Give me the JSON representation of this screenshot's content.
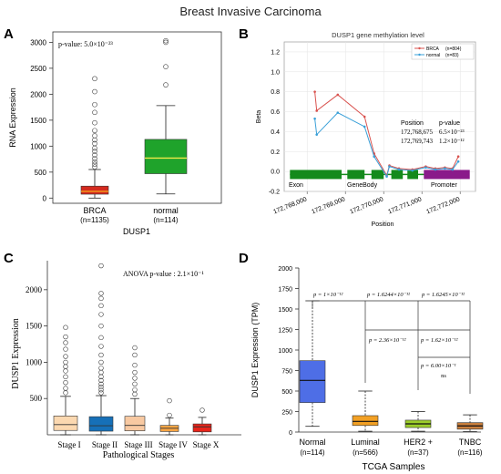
{
  "figure_title": "Breast Invasive Carcinoma",
  "chart_data": [
    {
      "panel": "A",
      "type": "box",
      "title": "",
      "ylabel": "RNA Expression",
      "xlabel": "DUSP1",
      "ylim": [
        -100,
        3200
      ],
      "yticks": [
        0,
        500,
        1000,
        1500,
        2000,
        2500,
        3000
      ],
      "annotation": "p-value: 5.0×10⁻²³",
      "categories": [
        "BRCA",
        "normal"
      ],
      "category_counts": [
        "(n=1135)",
        "(n=114)"
      ],
      "series": [
        {
          "label": "BRCA",
          "whisker_low": 0,
          "q1": 75,
          "median": 130,
          "q3": 230,
          "whisker_high": 550,
          "outliers": [
            600,
            650,
            700,
            760,
            830,
            900,
            960,
            1050,
            1120,
            1200,
            1300,
            1450,
            1650,
            1800,
            2050,
            2300
          ],
          "color": "#d42a1e"
        },
        {
          "label": "normal",
          "whisker_low": 80,
          "q1": 470,
          "median": 770,
          "q3": 1130,
          "whisker_high": 1780,
          "outliers": [
            2180,
            2530,
            3000,
            3030
          ],
          "color": "#1fa32b"
        }
      ]
    },
    {
      "panel": "B",
      "type": "line",
      "title": "DUSP1 gene methylation level",
      "xlabel": "Position",
      "ylabel": "Beta",
      "xlim": [
        172767400,
        172772400
      ],
      "ylim": [
        -0.2,
        1.3
      ],
      "xticks": [
        172768000,
        172769000,
        172770000,
        172771000,
        172772000
      ],
      "xtick_labels": [
        "172,768,000",
        "172,769,000",
        "172,770,000",
        "172,771,000",
        "172,772,000"
      ],
      "yticks": [
        -0.2,
        0.0,
        0.2,
        0.4,
        0.6,
        0.8,
        1.0,
        1.2
      ],
      "ytick_labels": [
        "-0.2",
        "0.0",
        "0.2",
        "0.4",
        "0.6",
        "0.8",
        "1.0",
        "1.2"
      ],
      "legend": [
        {
          "name": "BRCA",
          "count": "(n=804)",
          "color": "#d9534f"
        },
        {
          "name": "normal",
          "count": "(n=83)",
          "color": "#3aa0d8"
        }
      ],
      "legend_position": "top-right",
      "series": [
        {
          "name": "BRCA",
          "color": "#d9534f",
          "x": [
            172768200,
            172768250,
            172768800,
            172769500,
            172769750,
            172770080,
            172770150,
            172770400,
            172770750,
            172771100,
            172771350,
            172771600,
            172771800,
            172771950
          ],
          "y": [
            0.8,
            0.61,
            0.77,
            0.55,
            0.18,
            -0.04,
            0.06,
            0.03,
            0.02,
            0.05,
            0.03,
            0.04,
            0.03,
            0.15
          ]
        },
        {
          "name": "normal",
          "color": "#3aa0d8",
          "x": [
            172768200,
            172768250,
            172768800,
            172769500,
            172769750,
            172770080,
            172770150,
            172770400,
            172770750,
            172771100,
            172771350,
            172771600,
            172771800,
            172771950
          ],
          "y": [
            0.53,
            0.37,
            0.59,
            0.45,
            0.15,
            -0.05,
            0.05,
            0.02,
            0.01,
            0.04,
            0.02,
            0.03,
            0.02,
            0.1
          ]
        }
      ],
      "gene_track": {
        "exon_label": "Exon",
        "genebody_label": "GeneBody",
        "promoter_label": "Promoter",
        "exon_color": "#148a1c",
        "promoter_color": "#8a1a8a"
      },
      "stats_table": {
        "headers": [
          "Position",
          "p-value"
        ],
        "rows": [
          [
            "172,768,675",
            "6.5×10⁻²³"
          ],
          [
            "172,769,743",
            "1.2×10⁻¹²"
          ]
        ]
      }
    },
    {
      "panel": "C",
      "type": "box",
      "title": "",
      "ylabel": "DUSP1 Expression",
      "xlabel": "Pathological Stages",
      "ylim": [
        0,
        2400
      ],
      "yticks": [
        500,
        1000,
        1500,
        2000
      ],
      "annotation": "ANOVA p-value : 2.1×10⁻¹",
      "categories": [
        "Stage I",
        "Stage II",
        "Stage III",
        "Stage IV",
        "Stage X"
      ],
      "series": [
        {
          "label": "Stage I",
          "whisker_low": 0,
          "q1": 60,
          "median": 140,
          "q3": 260,
          "whisker_high": 530,
          "outliers": [
            580,
            640,
            720,
            800,
            880,
            940,
            1000,
            1080,
            1180,
            1270,
            1350,
            1480
          ],
          "color": "#fbd8b0"
        },
        {
          "label": "Stage II",
          "whisker_low": 0,
          "q1": 50,
          "median": 125,
          "q3": 250,
          "whisker_high": 540,
          "outliers": [
            580,
            620,
            660,
            700,
            750,
            800,
            860,
            920,
            1000,
            1100,
            1220,
            1340,
            1500,
            1660,
            1780,
            1880,
            1950,
            2330
          ],
          "color": "#1670b8"
        },
        {
          "label": "Stage III",
          "whisker_low": 0,
          "q1": 55,
          "median": 130,
          "q3": 255,
          "whisker_high": 500,
          "outliers": [
            560,
            620,
            700,
            780,
            860,
            960,
            1100,
            1200
          ],
          "color": "#f8c9a2"
        },
        {
          "label": "Stage IV",
          "whisker_low": 0,
          "q1": 45,
          "median": 90,
          "q3": 130,
          "whisker_high": 230,
          "outliers": [
            270,
            470
          ],
          "color": "#f7a544"
        },
        {
          "label": "Stage X",
          "whisker_low": 0,
          "q1": 40,
          "median": 110,
          "q3": 150,
          "whisker_high": 240,
          "outliers": [
            340
          ],
          "color": "#e8241a"
        }
      ]
    },
    {
      "panel": "D",
      "type": "box",
      "title": "",
      "ylabel": "DUSP1 Expression (TPM)",
      "xlabel": "TCGA Samples",
      "ylim": [
        0,
        2000
      ],
      "yticks": [
        0,
        250,
        500,
        750,
        1000,
        1250,
        1500,
        1750,
        2000
      ],
      "categories": [
        "Normal",
        "Luminal",
        "HER2 +",
        "TNBC"
      ],
      "category_counts": [
        "(n=114)",
        "(n=566)",
        "(n=37)",
        "(n=116)"
      ],
      "series": [
        {
          "label": "Normal",
          "whisker_low": 70,
          "q1": 360,
          "median": 630,
          "q3": 870,
          "whisker_high": 1600,
          "color": "#4e6ee6"
        },
        {
          "label": "Luminal",
          "whisker_low": 10,
          "q1": 80,
          "median": 130,
          "q3": 200,
          "whisker_high": 500,
          "color": "#f2a024"
        },
        {
          "label": "HER2 +",
          "whisker_low": 10,
          "q1": 55,
          "median": 100,
          "q3": 145,
          "whisker_high": 250,
          "color": "#9ccd2a"
        },
        {
          "label": "TNBC",
          "whisker_low": 5,
          "q1": 35,
          "median": 75,
          "q3": 115,
          "whisker_high": 210,
          "color": "#c87e3c"
        }
      ],
      "comparisons": [
        {
          "label": "p = 1×10⁻¹²"
        },
        {
          "label": "p = 1.6244×10⁻¹²"
        },
        {
          "label": "p = 1.6245×10⁻¹²"
        },
        {
          "label": "p = 2.36×10⁻¹²"
        },
        {
          "label": "p = 1.62×10⁻¹²"
        },
        {
          "label": "p = 6.00×10⁻¹"
        },
        {
          "label": "ns"
        }
      ]
    }
  ],
  "panel_letters": [
    "A",
    "B",
    "C",
    "D"
  ]
}
